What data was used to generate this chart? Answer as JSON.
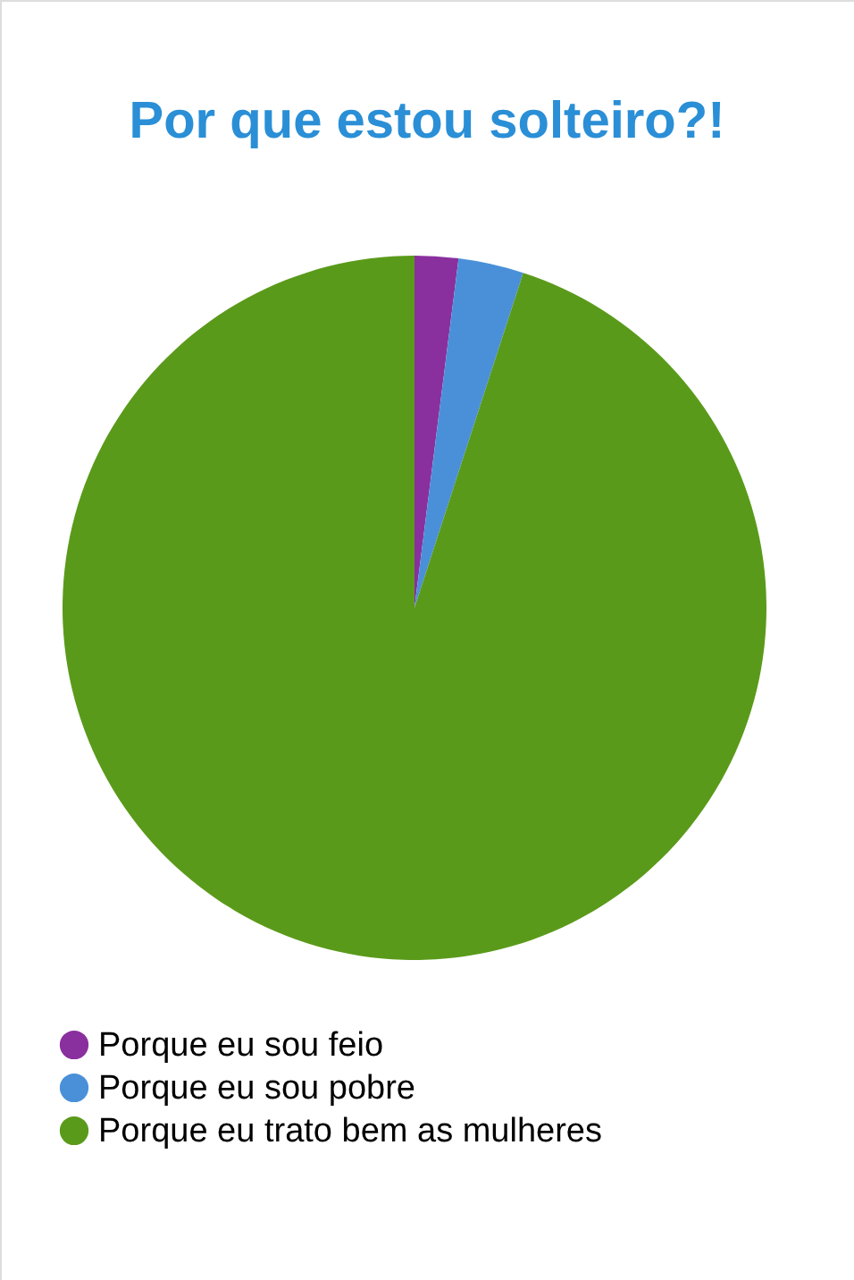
{
  "chart_data": {
    "type": "pie",
    "title": "Por que estou solteiro?!",
    "categories": [
      "Porque eu sou feio",
      "Porque eu sou pobre",
      "Porque eu trato bem as mulheres"
    ],
    "values": [
      2,
      3,
      95
    ],
    "colors": [
      "#8a2f9e",
      "#4a90d9",
      "#5a9a1a"
    ],
    "legend": "bottom left"
  }
}
